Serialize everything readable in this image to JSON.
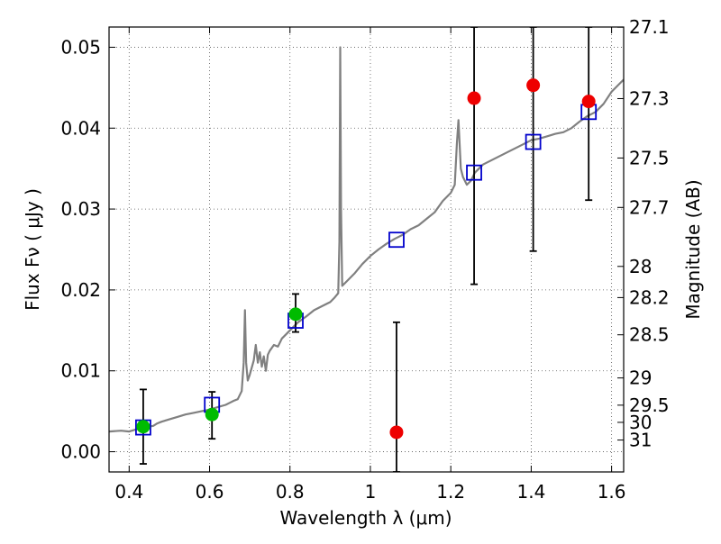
{
  "chart_data": {
    "type": "scatter",
    "title": "",
    "xlabel": "Wavelength  λ (μm)",
    "ylabel": "Flux  Fν  ( μJy )",
    "y2label": "Magnitude (AB)",
    "xlim": [
      0.35,
      1.63
    ],
    "ylim": [
      -0.0025,
      0.0525
    ],
    "grid": true,
    "legend": "none",
    "x_ticks": [
      {
        "value": 0.4,
        "label": "0.4"
      },
      {
        "value": 0.6,
        "label": "0.6"
      },
      {
        "value": 0.8,
        "label": "0.8"
      },
      {
        "value": 1.0,
        "label": "1"
      },
      {
        "value": 1.2,
        "label": "1.2"
      },
      {
        "value": 1.4,
        "label": "1.4"
      },
      {
        "value": 1.6,
        "label": "1.6"
      }
    ],
    "y_ticks": [
      {
        "value": 0.0,
        "label": "0.00"
      },
      {
        "value": 0.01,
        "label": "0.01"
      },
      {
        "value": 0.02,
        "label": "0.02"
      },
      {
        "value": 0.03,
        "label": "0.03"
      },
      {
        "value": 0.04,
        "label": "0.04"
      },
      {
        "value": 0.05,
        "label": "0.05"
      }
    ],
    "mag_ticks": [
      {
        "value": 27.1,
        "label": "27.1"
      },
      {
        "value": 27.3,
        "label": "27.3"
      },
      {
        "value": 27.5,
        "label": "27.5"
      },
      {
        "value": 27.7,
        "label": "27.7"
      },
      {
        "value": 28.0,
        "label": "28"
      },
      {
        "value": 28.2,
        "label": "28.2"
      },
      {
        "value": 28.5,
        "label": "28.5"
      },
      {
        "value": 29.0,
        "label": "29"
      },
      {
        "value": 29.5,
        "label": "29.5"
      },
      {
        "value": 30.0,
        "label": "30"
      },
      {
        "value": 31.0,
        "label": "31"
      }
    ],
    "colors": {
      "spectrum": "#808080",
      "model_box": "#0000cc",
      "detection": "#00bb00",
      "nondetection": "#ee0000",
      "errorbar": "#000000",
      "grid": "#555555"
    },
    "spectrum": [
      [
        0.35,
        0.0025
      ],
      [
        0.38,
        0.0026
      ],
      [
        0.4,
        0.0025
      ],
      [
        0.42,
        0.0028
      ],
      [
        0.44,
        0.003
      ],
      [
        0.46,
        0.0032
      ],
      [
        0.47,
        0.0035
      ],
      [
        0.48,
        0.0037
      ],
      [
        0.5,
        0.004
      ],
      [
        0.52,
        0.0043
      ],
      [
        0.54,
        0.0046
      ],
      [
        0.56,
        0.0048
      ],
      [
        0.58,
        0.005
      ],
      [
        0.6,
        0.0052
      ],
      [
        0.62,
        0.0055
      ],
      [
        0.64,
        0.0058
      ],
      [
        0.66,
        0.0063
      ],
      [
        0.67,
        0.0065
      ],
      [
        0.68,
        0.0075
      ],
      [
        0.685,
        0.011
      ],
      [
        0.688,
        0.0175
      ],
      [
        0.691,
        0.011
      ],
      [
        0.695,
        0.0088
      ],
      [
        0.7,
        0.0095
      ],
      [
        0.71,
        0.0113
      ],
      [
        0.715,
        0.0132
      ],
      [
        0.72,
        0.011
      ],
      [
        0.725,
        0.0123
      ],
      [
        0.73,
        0.0105
      ],
      [
        0.735,
        0.0118
      ],
      [
        0.74,
        0.01
      ],
      [
        0.745,
        0.012
      ],
      [
        0.75,
        0.0125
      ],
      [
        0.76,
        0.0132
      ],
      [
        0.77,
        0.013
      ],
      [
        0.78,
        0.014
      ],
      [
        0.79,
        0.0145
      ],
      [
        0.8,
        0.015
      ],
      [
        0.82,
        0.016
      ],
      [
        0.84,
        0.0167
      ],
      [
        0.86,
        0.0175
      ],
      [
        0.88,
        0.018
      ],
      [
        0.9,
        0.0185
      ],
      [
        0.91,
        0.019
      ],
      [
        0.92,
        0.0196
      ],
      [
        0.923,
        0.026
      ],
      [
        0.925,
        0.05
      ],
      [
        0.927,
        0.03
      ],
      [
        0.93,
        0.0205
      ],
      [
        0.94,
        0.021
      ],
      [
        0.96,
        0.022
      ],
      [
        0.98,
        0.0232
      ],
      [
        1.0,
        0.0242
      ],
      [
        1.02,
        0.025
      ],
      [
        1.04,
        0.0257
      ],
      [
        1.06,
        0.0263
      ],
      [
        1.08,
        0.0268
      ],
      [
        1.1,
        0.0275
      ],
      [
        1.12,
        0.028
      ],
      [
        1.14,
        0.0288
      ],
      [
        1.16,
        0.0296
      ],
      [
        1.18,
        0.031
      ],
      [
        1.2,
        0.032
      ],
      [
        1.21,
        0.033
      ],
      [
        1.215,
        0.038
      ],
      [
        1.219,
        0.041
      ],
      [
        1.222,
        0.038
      ],
      [
        1.225,
        0.035
      ],
      [
        1.23,
        0.034
      ],
      [
        1.24,
        0.033
      ],
      [
        1.25,
        0.0335
      ],
      [
        1.26,
        0.0345
      ],
      [
        1.28,
        0.0355
      ],
      [
        1.3,
        0.036
      ],
      [
        1.32,
        0.0365
      ],
      [
        1.34,
        0.037
      ],
      [
        1.36,
        0.0375
      ],
      [
        1.38,
        0.038
      ],
      [
        1.4,
        0.0385
      ],
      [
        1.42,
        0.0387
      ],
      [
        1.44,
        0.039
      ],
      [
        1.46,
        0.0393
      ],
      [
        1.48,
        0.0395
      ],
      [
        1.5,
        0.04
      ],
      [
        1.52,
        0.0408
      ],
      [
        1.54,
        0.0415
      ],
      [
        1.56,
        0.042
      ],
      [
        1.58,
        0.043
      ],
      [
        1.6,
        0.0445
      ],
      [
        1.62,
        0.0455
      ],
      [
        1.63,
        0.046
      ]
    ],
    "model_boxes": [
      {
        "x": 0.435,
        "y": 0.003
      },
      {
        "x": 0.606,
        "y": 0.0058
      },
      {
        "x": 0.814,
        "y": 0.0162
      },
      {
        "x": 1.065,
        "y": 0.0262
      },
      {
        "x": 1.258,
        "y": 0.0345
      },
      {
        "x": 1.405,
        "y": 0.0383
      },
      {
        "x": 1.543,
        "y": 0.042
      }
    ],
    "detections": [
      {
        "x": 0.435,
        "y": 0.0031,
        "yerr_low": -0.0015,
        "yerr_high": 0.0077
      },
      {
        "x": 0.606,
        "y": 0.0046,
        "yerr_low": 0.0016,
        "yerr_high": 0.0074
      },
      {
        "x": 0.814,
        "y": 0.017,
        "yerr_low": 0.0148,
        "yerr_high": 0.0195
      }
    ],
    "nondetections": [
      {
        "x": 1.065,
        "y": 0.0024,
        "yerr_low": -0.0025,
        "yerr_high": 0.016
      },
      {
        "x": 1.258,
        "y": 0.0437,
        "yerr_low": 0.0207,
        "yerr_high": 0.0525
      },
      {
        "x": 1.405,
        "y": 0.0453,
        "yerr_low": 0.0248,
        "yerr_high": 0.0525
      },
      {
        "x": 1.543,
        "y": 0.0433,
        "yerr_low": 0.0311,
        "yerr_high": 0.0525
      }
    ]
  }
}
